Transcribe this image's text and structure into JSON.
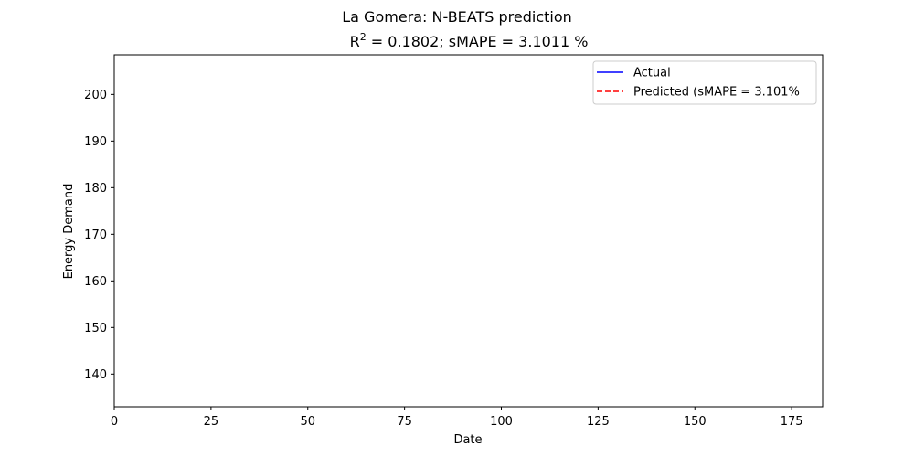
{
  "chart_data": {
    "type": "line",
    "title": "La Gomera: N-BEATS prediction",
    "subtitle": {
      "prefix": "R",
      "superscript": "2",
      "rest": " = 0.1802; sMAPE = 3.1011 %"
    },
    "xlabel": "Date",
    "ylabel": "Energy Demand",
    "xlim": [
      0,
      183
    ],
    "ylim": [
      133,
      208.5
    ],
    "xticks": [
      0,
      25,
      50,
      75,
      100,
      125,
      150,
      175
    ],
    "yticks": [
      140,
      150,
      160,
      170,
      180,
      190,
      200
    ],
    "grid": false,
    "legend_position": "top-right",
    "series": [
      {
        "name": "Actual",
        "color": "#0000ff",
        "dash": "solid",
        "values": []
      },
      {
        "name": "Predicted (sMAPE = 3.101%",
        "color": "#ff0000",
        "dash": "dashed",
        "values": []
      }
    ]
  }
}
